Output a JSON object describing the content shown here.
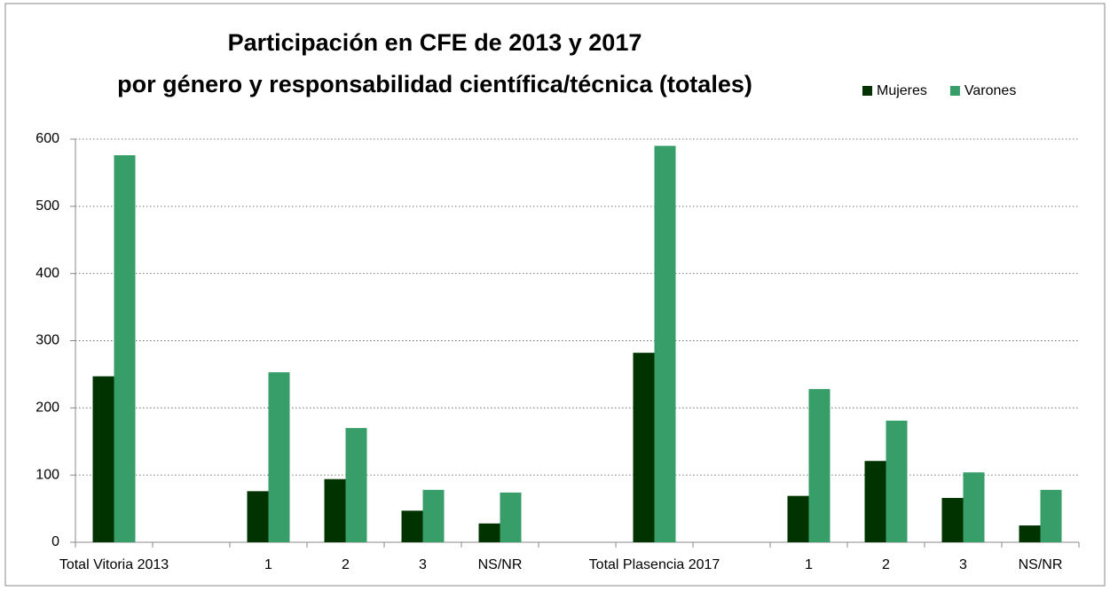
{
  "chart_data": {
    "type": "bar",
    "title": [
      "Participación en CFE de 2013 y 2017",
      "por género y responsabilidad científica/técnica (totales)"
    ],
    "categories": [
      "Total Vitoria 2013",
      null,
      "1",
      "2",
      "3",
      "NS/NR",
      null,
      "Total Plasencia 2017",
      null,
      "1",
      "2",
      "3",
      "NS/NR"
    ],
    "series": [
      {
        "name": "Mujeres",
        "color": "#003300",
        "values": [
          247,
          null,
          76,
          94,
          47,
          28,
          null,
          282,
          null,
          69,
          121,
          66,
          25
        ]
      },
      {
        "name": "Varones",
        "color": "#389e69",
        "values": [
          576,
          null,
          253,
          170,
          78,
          74,
          null,
          590,
          null,
          228,
          181,
          104,
          78
        ]
      }
    ],
    "ylim": [
      0,
      600
    ],
    "yticks": [
      0,
      100,
      200,
      300,
      400,
      500,
      600
    ],
    "grid": true,
    "legend": "top-right"
  }
}
